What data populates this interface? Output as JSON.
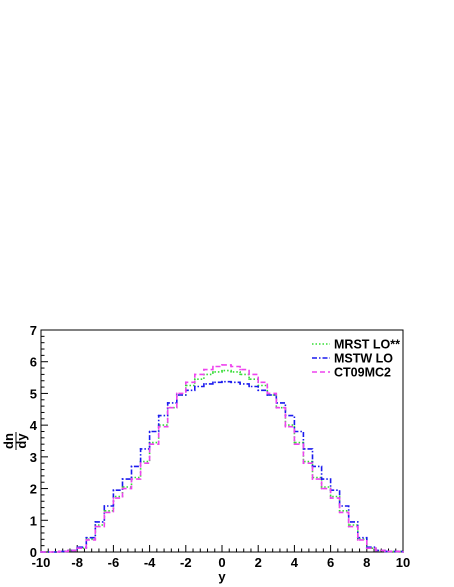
{
  "chart_data": {
    "type": "line",
    "title": "",
    "xlabel": "y",
    "ylabel_top": "dn",
    "ylabel_bottom": "dy",
    "xlim": [
      -10,
      10
    ],
    "ylim": [
      0,
      7
    ],
    "x_ticks": [
      "-10",
      "-8",
      "-6",
      "-4",
      "-2",
      "0",
      "2",
      "4",
      "6",
      "8",
      "10"
    ],
    "y_ticks": [
      "0",
      "1",
      "2",
      "3",
      "4",
      "5",
      "6",
      "7"
    ],
    "grid": false,
    "legend_position": "top-right",
    "series": [
      {
        "name": "MRST LO**",
        "color": "#33dd33",
        "style": "dotted",
        "x": [
          -10,
          -9,
          -8.5,
          -8,
          -7.5,
          -7,
          -6.5,
          -6,
          -5.5,
          -5,
          -4.5,
          -4,
          -3.5,
          -3,
          -2.5,
          -2,
          -1.5,
          -1,
          -0.5,
          0,
          0.5,
          1,
          1.5,
          2,
          2.5,
          3,
          3.5,
          4,
          4.5,
          5,
          5.5,
          6,
          6.5,
          7,
          7.5,
          8,
          8.5,
          9,
          10
        ],
        "y": [
          0,
          0.02,
          0.05,
          0.12,
          0.4,
          0.85,
          1.3,
          1.75,
          2.05,
          2.35,
          2.85,
          3.45,
          4.0,
          4.55,
          4.95,
          5.25,
          5.45,
          5.6,
          5.68,
          5.72,
          5.68,
          5.6,
          5.45,
          5.25,
          4.95,
          4.55,
          4.0,
          3.45,
          2.85,
          2.35,
          2.05,
          1.75,
          1.3,
          0.85,
          0.4,
          0.12,
          0.05,
          0.02,
          0
        ]
      },
      {
        "name": "MSTW LO",
        "color": "#1a1aee",
        "style": "dash-dot",
        "x": [
          -10,
          -9,
          -8.5,
          -8,
          -7.5,
          -7,
          -6.5,
          -6,
          -5.5,
          -5,
          -4.5,
          -4,
          -3.5,
          -3,
          -2.5,
          -2,
          -1.5,
          -1,
          -0.5,
          0,
          0.5,
          1,
          1.5,
          2,
          2.5,
          3,
          3.5,
          4,
          4.5,
          5,
          5.5,
          6,
          6.5,
          7,
          7.5,
          8,
          8.5,
          9,
          10
        ],
        "y": [
          0,
          0.02,
          0.05,
          0.15,
          0.45,
          0.95,
          1.45,
          1.95,
          2.3,
          2.7,
          3.25,
          3.8,
          4.3,
          4.7,
          4.95,
          5.1,
          5.22,
          5.3,
          5.35,
          5.37,
          5.35,
          5.3,
          5.22,
          5.1,
          4.95,
          4.7,
          4.3,
          3.8,
          3.25,
          2.7,
          2.3,
          1.95,
          1.45,
          0.95,
          0.45,
          0.15,
          0.05,
          0.02,
          0
        ]
      },
      {
        "name": "CT09MC2",
        "color": "#ee44ee",
        "style": "dashed",
        "x": [
          -10,
          -9,
          -8.5,
          -8,
          -7.5,
          -7,
          -6.5,
          -6,
          -5.5,
          -5,
          -4.5,
          -4,
          -3.5,
          -3,
          -2.5,
          -2,
          -1.5,
          -1,
          -0.5,
          0,
          0.5,
          1,
          1.5,
          2,
          2.5,
          3,
          3.5,
          4,
          4.5,
          5,
          5.5,
          6,
          6.5,
          7,
          7.5,
          8,
          8.5,
          9,
          10
        ],
        "y": [
          0,
          0.02,
          0.05,
          0.12,
          0.38,
          0.8,
          1.25,
          1.7,
          2.0,
          2.3,
          2.8,
          3.4,
          3.95,
          4.55,
          5.0,
          5.35,
          5.6,
          5.75,
          5.85,
          5.9,
          5.85,
          5.75,
          5.6,
          5.35,
          5.0,
          4.55,
          3.95,
          3.4,
          2.8,
          2.3,
          2.0,
          1.7,
          1.25,
          0.8,
          0.38,
          0.12,
          0.05,
          0.02,
          0
        ]
      }
    ]
  }
}
